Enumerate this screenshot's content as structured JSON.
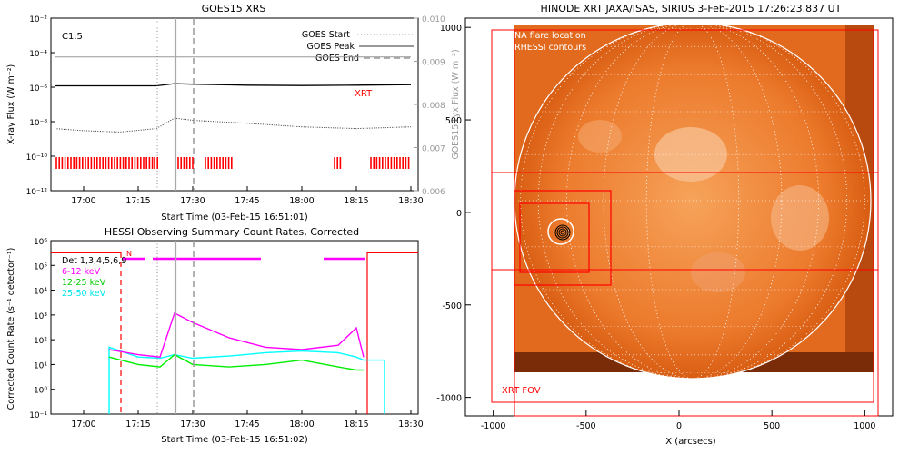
{
  "goes": {
    "title": "GOES15 XRS",
    "class_label": "C1.5",
    "legend": [
      "GOES Start",
      "GOES Peak",
      "GOES End"
    ],
    "xrt_label": "XRT",
    "xlabel": "Start Time (03-Feb-15 16:51:01)",
    "ylabel": "X-ray Flux (W m⁻²)",
    "ylabel2": "GOES15 Lyx Flux (W m⁻²)",
    "xticks": [
      "17:00",
      "17:15",
      "17:30",
      "17:45",
      "18:00",
      "18:15",
      "18:30"
    ],
    "yticks": [
      "10⁻²",
      "10⁻⁴",
      "10⁻⁶",
      "10⁻⁸",
      "10⁻¹⁰",
      "10⁻¹²"
    ],
    "y2ticks": [
      "0.010",
      "0.009",
      "0.008",
      "0.007",
      "0.006"
    ]
  },
  "hessi": {
    "title": "HESSI Observing Summary Count Rates, Corrected",
    "legend_title": "Det 1,3,4,5,6,9",
    "bands": [
      "6-12 keV",
      "12-25 keV",
      "25-50 keV"
    ],
    "marker": "N",
    "xlabel": "Start Time (03-Feb-15 16:51:02)",
    "ylabel": "Corrected Count Rate (s⁻¹ detector⁻¹)",
    "xticks": [
      "17:00",
      "17:15",
      "17:30",
      "17:45",
      "18:00",
      "18:15",
      "18:30"
    ],
    "yticks": [
      "10⁶",
      "10⁵",
      "10⁴",
      "10³",
      "10²",
      "10¹",
      "10⁰",
      "10⁻¹"
    ]
  },
  "xrt": {
    "title": "HINODE XRT JAXA/ISAS, SIRIUS   3-Feb-2015 17:26:23.837 UT",
    "legend": [
      "NA flare location",
      "RHESSI contours"
    ],
    "fov_label": "XRT FOV",
    "xlabel": "X (arcsecs)",
    "xticks": [
      "-1000",
      "-500",
      "0",
      "500",
      "1000"
    ],
    "yticks": [
      "1000",
      "500",
      "0",
      "-500",
      "-1000"
    ]
  },
  "colors": {
    "goes_long": "#000000",
    "goes_short": "#333333",
    "goes_lya": "#999999",
    "red": "#ff0000",
    "magenta": "#ff00ff",
    "green": "#00ee00",
    "cyan": "#00ffff",
    "sun": "#ee7722",
    "gray": "#aaaaaa"
  },
  "chart_data": [
    {
      "type": "line",
      "title": "GOES15 XRS",
      "xlabel": "Start Time (03-Feb-15 16:51:01)",
      "ylabel": "X-ray Flux (W m⁻²)",
      "y2label": "GOES15 Lyx Flux (W m⁻²)",
      "xlim": [
        "16:51",
        "18:32"
      ],
      "ylim": [
        1e-12,
        0.01
      ],
      "yscale": "log",
      "y2lim": [
        0.006,
        0.01
      ],
      "x": [
        "16:52",
        "17:00",
        "17:10",
        "17:20",
        "17:25",
        "17:30",
        "17:45",
        "18:00",
        "18:15",
        "18:30"
      ],
      "series": [
        {
          "values": [
            1.2e-06,
            1.2e-06,
            1.2e-06,
            1.2e-06,
            1.6e-06,
            1.5e-06,
            1.3e-06,
            1.25e-06,
            1.3e-06,
            1.4e-06
          ]
        },
        {
          "values": [
            4e-09,
            3e-09,
            2.5e-09,
            4e-09,
            1.6e-08,
            1.2e-08,
            8e-09,
            5e-09,
            4e-09,
            5e-09
          ]
        },
        {
          "values": [
            0.0091,
            0.0091,
            0.0091,
            0.0091,
            0.0091,
            0.0091,
            0.0091,
            0.0091,
            0.0091,
            0.0091
          ],
          "axis": "y2"
        }
      ],
      "markers": {
        "GOES Start": "17:21",
        "GOES Peak": "17:25",
        "GOES End": "17:30"
      }
    },
    {
      "type": "line",
      "title": "HESSI Observing Summary Count Rates, Corrected",
      "xlabel": "Start Time (03-Feb-15 16:51:02)",
      "ylabel": "Corrected Count Rate (s⁻¹ detector⁻¹)",
      "xlim": [
        "16:51",
        "18:32"
      ],
      "ylim": [
        0.1,
        1000000
      ],
      "yscale": "log",
      "x": [
        "17:07",
        "17:15",
        "17:21",
        "17:25",
        "17:30",
        "17:40",
        "17:50",
        "18:00",
        "18:10",
        "18:15",
        "18:17"
      ],
      "series": [
        {
          "name": "6-12 keV",
          "values": [
            40,
            25,
            20,
            1200,
            500,
            120,
            50,
            40,
            60,
            300,
            20
          ]
        },
        {
          "name": "12-25 keV",
          "values": [
            20,
            10,
            8,
            25,
            10,
            8,
            10,
            15,
            8,
            6,
            6
          ]
        },
        {
          "name": "25-50 keV",
          "values": [
            50,
            20,
            18,
            25,
            18,
            22,
            30,
            35,
            30,
            20,
            15
          ]
        }
      ]
    },
    {
      "type": "heatmap",
      "title": "HINODE XRT JAXA/ISAS, SIRIUS   3-Feb-2015 17:26:23.837 UT",
      "xlabel": "X (arcsecs)",
      "xlim": [
        -1150,
        1150
      ],
      "ylim": [
        -1100,
        1050
      ],
      "flare_location": [
        -730,
        -80
      ],
      "fov_label": "XRT FOV"
    }
  ]
}
